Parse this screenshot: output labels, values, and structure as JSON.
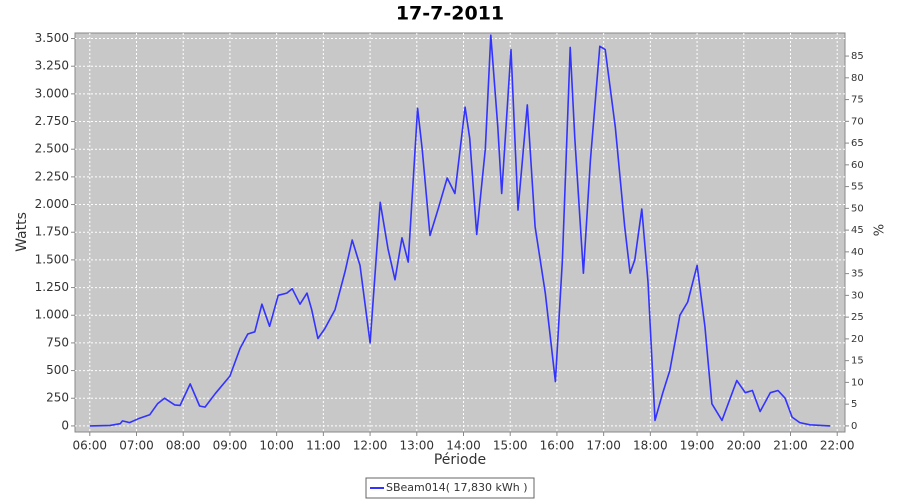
{
  "chart_data": {
    "type": "line",
    "title": "17-7-2011",
    "x_label": "Période",
    "y_label": "Watts",
    "y2_label": "%",
    "x": [
      "06:00",
      "06:26",
      "06:39",
      "06:42",
      "06:51",
      "07:04",
      "07:17",
      "07:27",
      "07:36",
      "07:49",
      "07:56",
      "08:09",
      "08:21",
      "08:28",
      "08:41",
      "09:00",
      "09:13",
      "09:23",
      "09:32",
      "09:41",
      "09:51",
      "10:02",
      "10:13",
      "10:20",
      "10:30",
      "10:39",
      "10:45",
      "10:53",
      "11:02",
      "11:15",
      "11:28",
      "11:37",
      "11:47",
      "12:00",
      "12:13",
      "12:23",
      "12:32",
      "12:41",
      "12:49",
      "13:01",
      "13:07",
      "13:17",
      "13:27",
      "13:39",
      "13:49",
      "14:02",
      "14:08",
      "14:17",
      "14:28",
      "14:35",
      "14:44",
      "14:49",
      "15:01",
      "15:10",
      "15:22",
      "15:32",
      "15:45",
      "15:58",
      "16:07",
      "16:17",
      "16:23",
      "16:34",
      "16:43",
      "16:55",
      "17:02",
      "17:15",
      "17:27",
      "17:34",
      "17:40",
      "17:49",
      "17:57",
      "18:06",
      "18:16",
      "18:25",
      "18:38",
      "18:48",
      "19:00",
      "19:10",
      "19:19",
      "19:32",
      "19:51",
      "20:02",
      "20:11",
      "20:21",
      "20:34",
      "20:44",
      "20:53",
      "21:02",
      "21:12",
      "21:25",
      "21:51"
    ],
    "series": [
      {
        "name": "SBeam014( 17,830 kWh )",
        "color": "#3333ff",
        "values": [
          0,
          5,
          20,
          45,
          30,
          70,
          100,
          200,
          250,
          190,
          185,
          380,
          180,
          170,
          290,
          450,
          700,
          830,
          850,
          1100,
          900,
          1180,
          1200,
          1240,
          1100,
          1200,
          1050,
          790,
          880,
          1050,
          1400,
          1680,
          1450,
          750,
          2020,
          1600,
          1320,
          1700,
          1480,
          2870,
          2500,
          1720,
          1950,
          2240,
          2100,
          2880,
          2600,
          1730,
          2500,
          3530,
          2700,
          2100,
          3400,
          1950,
          2900,
          1800,
          1200,
          400,
          1500,
          3420,
          2600,
          1380,
          2400,
          3430,
          3400,
          2700,
          1800,
          1380,
          1500,
          1960,
          1300,
          50,
          300,
          500,
          1000,
          1120,
          1450,
          900,
          200,
          50,
          410,
          300,
          320,
          130,
          300,
          320,
          250,
          80,
          30,
          10,
          0
        ]
      }
    ],
    "xlim": [
      "05:41",
      "22:10"
    ],
    "xticks": [
      "06:00",
      "07:00",
      "08:00",
      "09:00",
      "10:00",
      "11:00",
      "12:00",
      "13:00",
      "14:00",
      "15:00",
      "16:00",
      "17:00",
      "18:00",
      "19:00",
      "20:00",
      "21:00",
      "22:00"
    ],
    "ylim": [
      -55,
      3550
    ],
    "yticks": [
      0,
      250,
      500,
      750,
      {
        "value": 1000,
        "label": "1.000"
      },
      {
        "value": 1250,
        "label": "1.250"
      },
      {
        "value": 1500,
        "label": "1.500"
      },
      {
        "value": 1750,
        "label": "1.750"
      },
      {
        "value": 2000,
        "label": "2.000"
      },
      {
        "value": 2250,
        "label": "2.250"
      },
      {
        "value": 2500,
        "label": "2.500"
      },
      {
        "value": 2750,
        "label": "2.750"
      },
      {
        "value": 3000,
        "label": "3.000"
      },
      {
        "value": 3250,
        "label": "3.250"
      },
      {
        "value": 3500,
        "label": "3.500"
      }
    ],
    "y2lim": [
      -1.4,
      90.3
    ],
    "y2ticks": [
      0,
      5,
      10,
      15,
      20,
      25,
      30,
      35,
      40,
      45,
      50,
      55,
      60,
      65,
      70,
      75,
      80,
      85
    ],
    "grid": true,
    "legend": "bottom"
  }
}
